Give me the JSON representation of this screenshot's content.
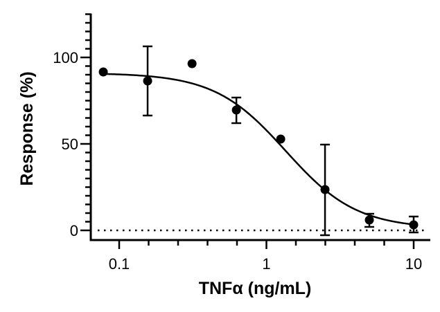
{
  "chart_data": {
    "type": "scatter",
    "title": "",
    "xlabel": "TNFα (ng/mL)",
    "ylabel": "Response (%)",
    "xscale": "log10",
    "xlim": [
      0.065,
      13.5
    ],
    "ylim": [
      -5,
      125
    ],
    "x_ticks": [
      0.1,
      1,
      10
    ],
    "x_tick_labels": [
      "0.1",
      "1",
      "10"
    ],
    "x_minor_ticks_per_decade": 5,
    "y_ticks": [
      0,
      50,
      100
    ],
    "y_tick_labels": [
      "0",
      "50",
      "100"
    ],
    "y_minor_tick_step": 5,
    "grid": false,
    "legend": null,
    "reference_line": {
      "y": 0,
      "style": "dotted"
    },
    "series": [
      {
        "name": "Response",
        "marker": "circle",
        "color": "#000000",
        "x": [
          0.078,
          0.156,
          0.3125,
          0.625,
          1.25,
          2.5,
          5,
          10
        ],
        "y": [
          91.6,
          86.4,
          96.4,
          69.6,
          52.8,
          23.6,
          6.0,
          3.2
        ],
        "error_upper": [
          null,
          106.4,
          null,
          76.8,
          null,
          49.6,
          9.6,
          8.0
        ],
        "error_lower": [
          null,
          66.4,
          null,
          62.0,
          null,
          -2.8,
          2.0,
          -1.2
        ]
      }
    ],
    "fit_curve": {
      "model": "four-parameter logistic",
      "top": 91,
      "bottom": 1,
      "ec50": 1.35,
      "hill_slope": -1.8
    }
  },
  "labels": {
    "xlabel": "TNFα (ng/mL)",
    "ylabel": "Response (%)"
  }
}
